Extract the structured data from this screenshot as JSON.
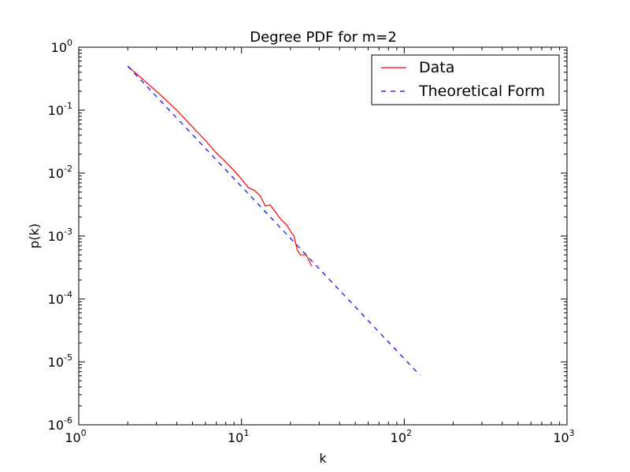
{
  "chart_data": {
    "type": "line",
    "title": "Degree PDF for m=2",
    "xlabel": "k",
    "ylabel": "p(k)",
    "xscale": "log",
    "yscale": "log",
    "xlim": [
      1,
      1000
    ],
    "ylim": [
      1e-06,
      1
    ],
    "grid": false,
    "legend_position": "top-right",
    "x_ticks": [
      {
        "value": 1,
        "base": "10",
        "exp": "0"
      },
      {
        "value": 10,
        "base": "10",
        "exp": "1"
      },
      {
        "value": 100,
        "base": "10",
        "exp": "2"
      },
      {
        "value": 1000,
        "base": "10",
        "exp": "3"
      }
    ],
    "y_ticks": [
      {
        "value": 1,
        "base": "10",
        "exp": "0"
      },
      {
        "value": 0.1,
        "base": "10",
        "exp": "-1"
      },
      {
        "value": 0.01,
        "base": "10",
        "exp": "-2"
      },
      {
        "value": 0.001,
        "base": "10",
        "exp": "-3"
      },
      {
        "value": 0.0001,
        "base": "10",
        "exp": "-4"
      },
      {
        "value": 1e-05,
        "base": "10",
        "exp": "-5"
      },
      {
        "value": 1e-06,
        "base": "10",
        "exp": "-6"
      }
    ],
    "series": [
      {
        "name": "Data",
        "color": "#ff0000",
        "style": "solid",
        "x": [
          2,
          3,
          4,
          5,
          6,
          7,
          8,
          9,
          10,
          11,
          12,
          13,
          14,
          15,
          16,
          17,
          18,
          19,
          20,
          21,
          22,
          23,
          24,
          25,
          27
        ],
        "y": [
          0.5,
          0.2,
          0.1,
          0.054,
          0.033,
          0.021,
          0.015,
          0.011,
          0.008,
          0.0059,
          0.0053,
          0.0044,
          0.003,
          0.0031,
          0.0025,
          0.002,
          0.0017,
          0.0015,
          0.0012,
          0.001,
          0.0006,
          0.0005,
          0.0005,
          0.0005,
          0.00033
        ]
      },
      {
        "name": "Theoretical Form",
        "color": "#0000ff",
        "style": "dashed",
        "x": [
          2,
          125
        ],
        "y": [
          0.5,
          6.1e-06
        ]
      }
    ]
  }
}
